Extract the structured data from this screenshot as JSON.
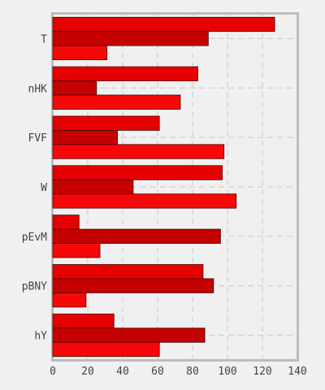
{
  "chart_data": {
    "type": "bar",
    "orientation": "horizontal",
    "title": "",
    "xlabel": "",
    "ylabel": "",
    "xlim": [
      0,
      140
    ],
    "xticks": [
      0,
      20,
      40,
      60,
      80,
      100,
      120,
      140
    ],
    "grid": true,
    "categories": [
      "T",
      "nHK",
      "FVF",
      "W",
      "pEvM",
      "pBNY",
      "hY"
    ],
    "series": [
      {
        "color": "#e60000",
        "values": [
          127,
          83,
          61,
          97,
          15,
          86,
          35
        ]
      },
      {
        "color": "#c40000",
        "values": [
          89,
          25,
          37,
          46,
          96,
          92,
          87
        ]
      },
      {
        "color": "#f70808",
        "values": [
          31,
          73,
          98,
          105,
          27,
          19,
          61
        ]
      }
    ]
  }
}
